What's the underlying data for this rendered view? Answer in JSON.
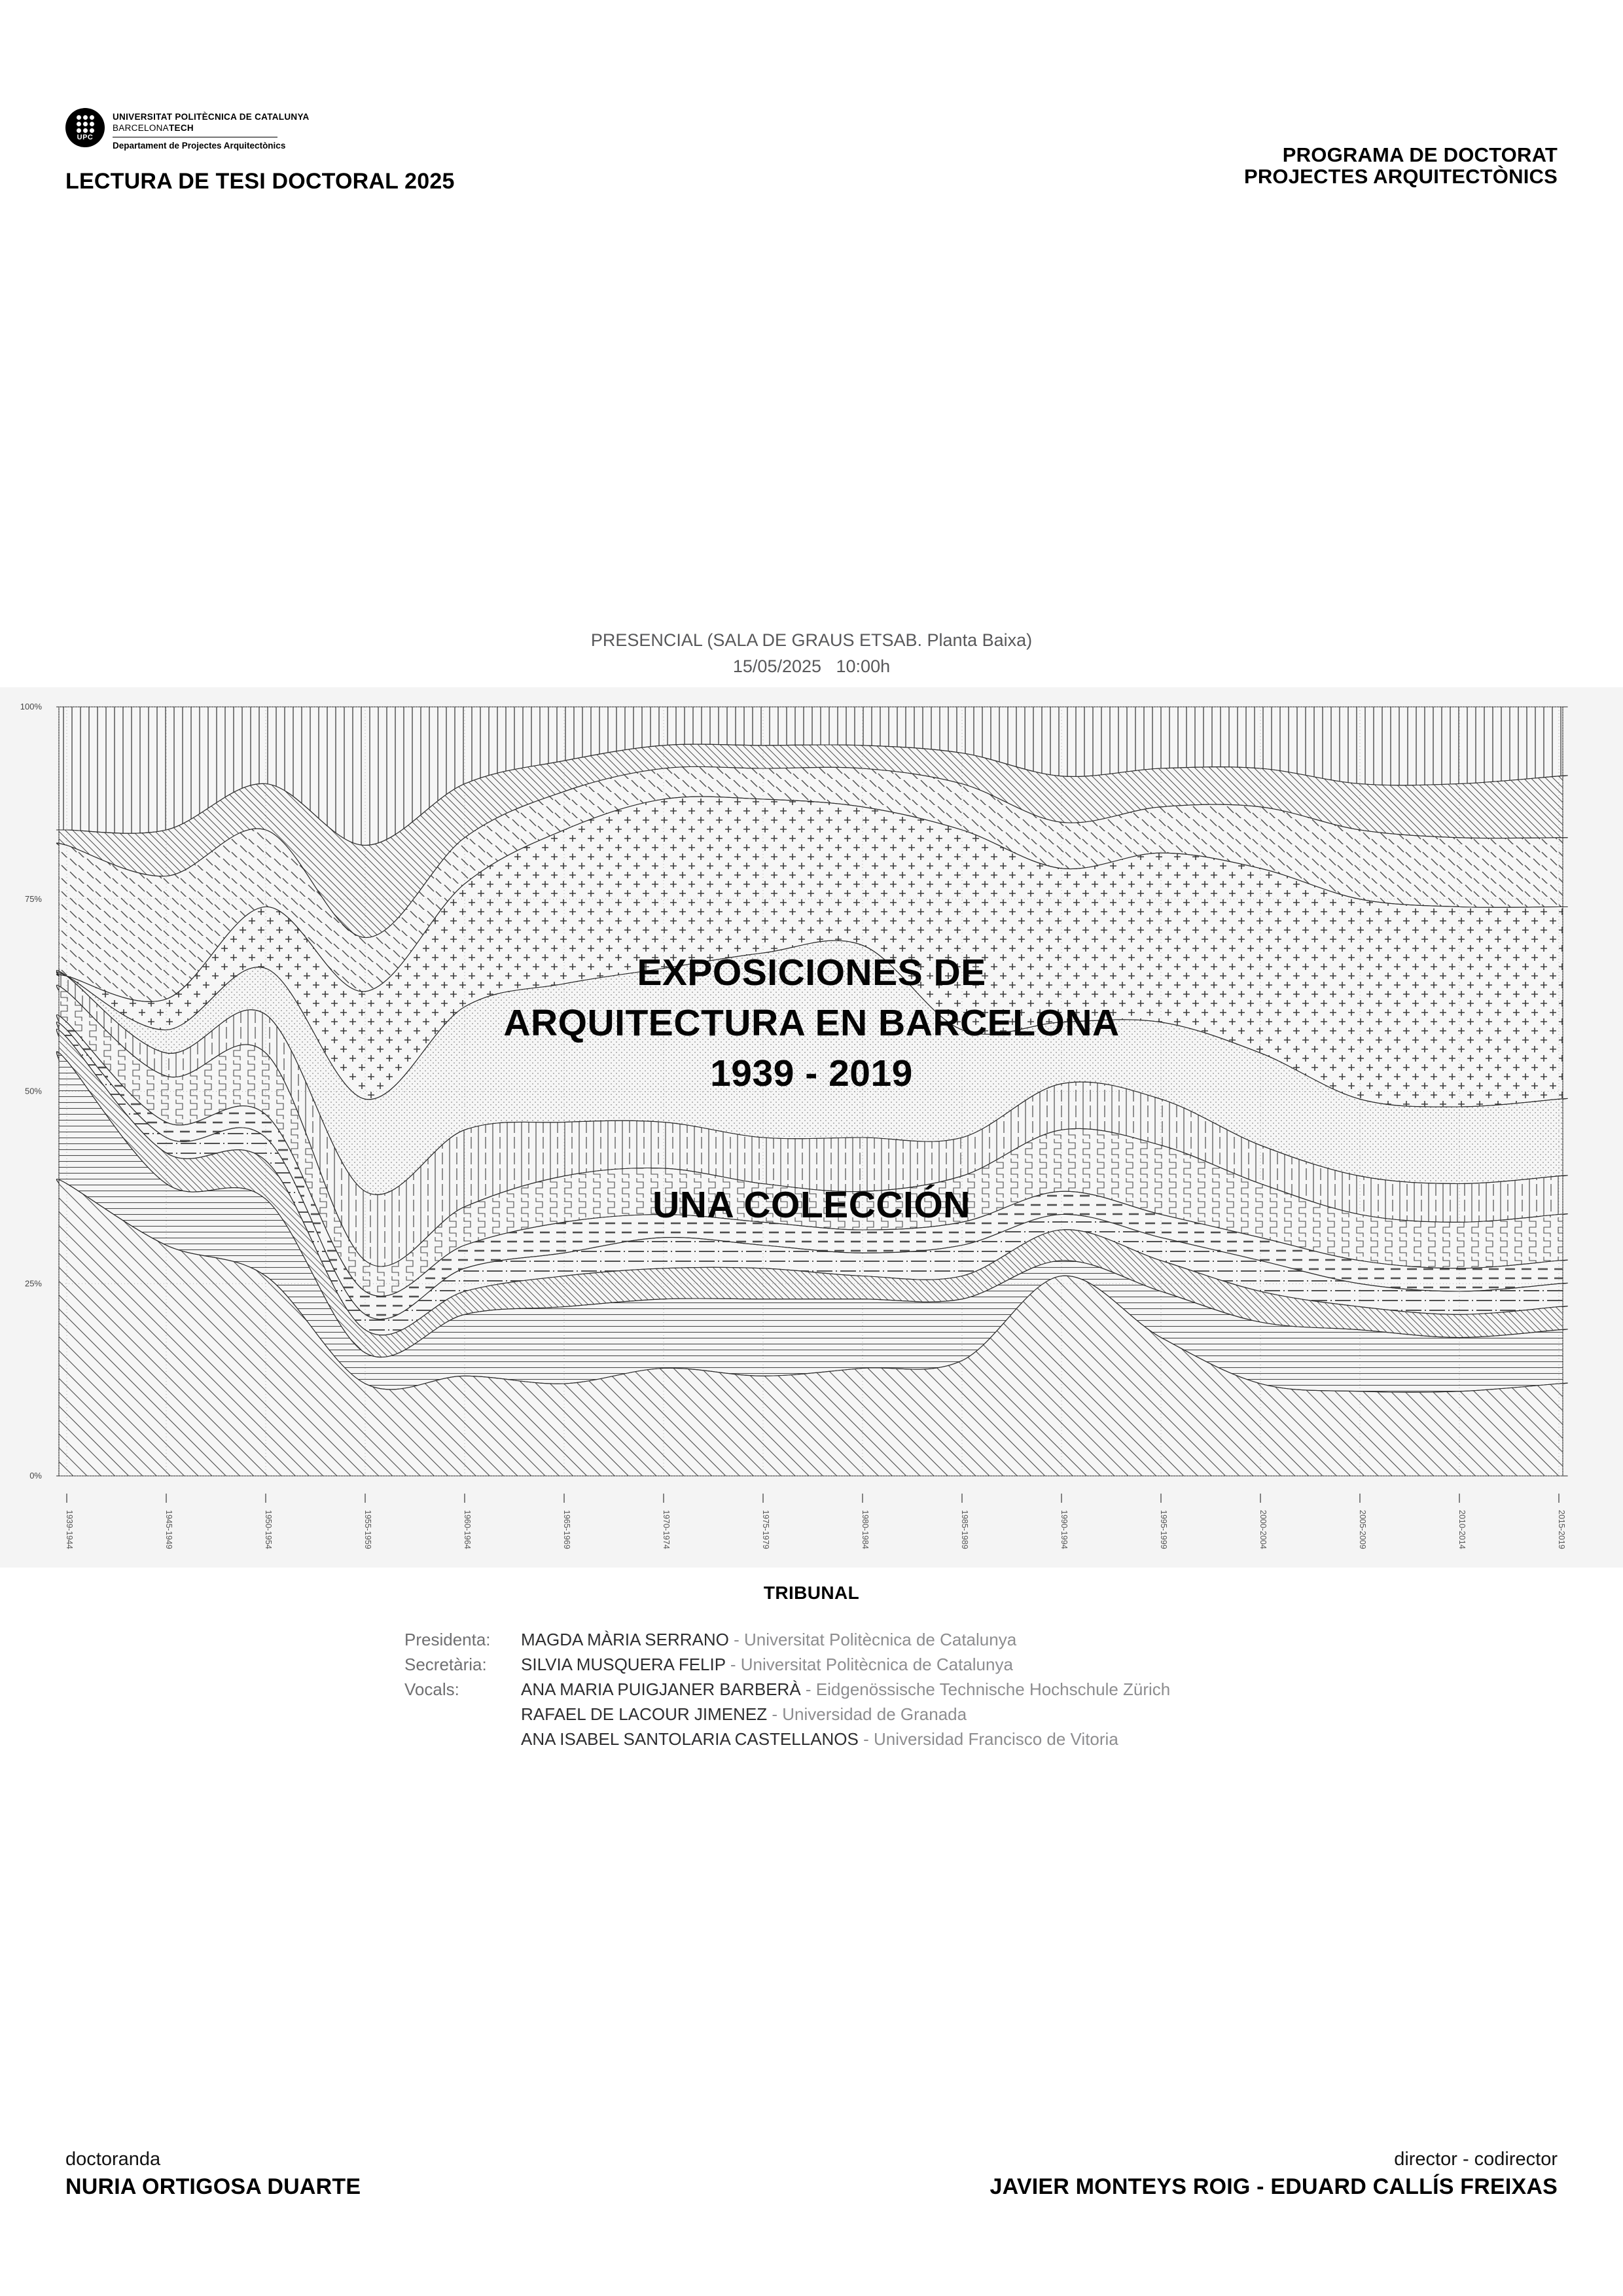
{
  "header": {
    "logo": {
      "acronym": "UPC",
      "line1": "UNIVERSITAT POLITÈCNICA DE CATALUNYA",
      "line2_regular": "BARCELONA",
      "line2_bold": "TECH",
      "department": "Departament de Projectes Arquitectònics"
    },
    "event_title": "LECTURA DE TESI DOCTORAL 2025",
    "program_line1": "PROGRAMA DE DOCTORAT",
    "program_line2": "PROJECTES ARQUITECTÒNICS"
  },
  "venue": {
    "location": "PRESENCIAL (SALA DE GRAUS ETSAB. Planta Baixa)",
    "datetime": "15/05/2025   10:00h"
  },
  "poster_title": {
    "line1": "EXPOSICIONES DE",
    "line2": "ARQUITECTURA EN BARCELONA",
    "line3": "1939 - 2019",
    "subtitle": "UNA COLECCIÓN"
  },
  "chart_data": {
    "type": "area",
    "variant": "normalized-stacked-streamgraph",
    "title": "EXPOSICIONES DE ARQUITECTURA EN BARCELONA 1939 - 2019 — UNA COLECCIÓN",
    "categories": [
      "1939-1944",
      "1945-1949",
      "1950-1954",
      "1955-1959",
      "1960-1964",
      "1965-1969",
      "1970-1974",
      "1975-1979",
      "1980-1984",
      "1985-1989",
      "1990-1994",
      "1995-1999",
      "2000-2004",
      "2005-2009",
      "2010-2014",
      "2015-2019"
    ],
    "y_ticks": [
      "0%",
      "25%",
      "50%",
      "75%",
      "100%"
    ],
    "ylim": [
      0,
      100
    ],
    "xlabel": "",
    "ylabel": "",
    "grid": "dotted",
    "legend": "none",
    "series_labels_visible": false,
    "series": [
      {
        "name": "band-01",
        "pattern": "diagonal-hatch-wide",
        "values": [
          38,
          30,
          26,
          12,
          13,
          12,
          14,
          13,
          14,
          15,
          26,
          18,
          12,
          11,
          11,
          12
        ]
      },
      {
        "name": "band-02",
        "pattern": "horizontal-lines",
        "values": [
          16,
          8,
          10,
          4,
          8,
          10,
          9,
          10,
          9,
          8,
          2,
          6,
          8,
          8,
          7,
          7
        ]
      },
      {
        "name": "band-03",
        "pattern": "diagonal-ribbon",
        "values": [
          3,
          4,
          5,
          3,
          3,
          4,
          4,
          4,
          3,
          3,
          4,
          4,
          4,
          3,
          3,
          3
        ]
      },
      {
        "name": "band-04",
        "pattern": "dash-dot-lines",
        "values": [
          1,
          2,
          3,
          2,
          3,
          3,
          4,
          3,
          3,
          4,
          2,
          3,
          4,
          3,
          3,
          3
        ]
      },
      {
        "name": "band-05",
        "pattern": "horizontal-dashes",
        "values": [
          1,
          2,
          3,
          3,
          3,
          4,
          3,
          3,
          3,
          3,
          3,
          3,
          3,
          3,
          3,
          3
        ]
      },
      {
        "name": "band-06",
        "pattern": "zigzag",
        "values": [
          4,
          6,
          8,
          4,
          5,
          6,
          6,
          5,
          5,
          6,
          8,
          9,
          7,
          6,
          6,
          6
        ]
      },
      {
        "name": "band-07",
        "pattern": "vertical-dashed",
        "values": [
          2,
          3,
          5,
          9,
          10,
          7,
          6,
          6,
          7,
          5,
          6,
          6,
          5,
          5,
          5,
          5
        ]
      },
      {
        "name": "band-08",
        "pattern": "fine-dots",
        "values": [
          0,
          3,
          6,
          12,
          16,
          18,
          20,
          24,
          25,
          14,
          8,
          10,
          12,
          10,
          10,
          10
        ]
      },
      {
        "name": "band-09",
        "pattern": "plus-crosses",
        "values": [
          0,
          4,
          8,
          14,
          16,
          20,
          22,
          20,
          18,
          26,
          20,
          22,
          24,
          26,
          26,
          25
        ]
      },
      {
        "name": "band-10",
        "pattern": "diagonal-dashes",
        "values": [
          17,
          16,
          10,
          7,
          6,
          5,
          4,
          4,
          5,
          6,
          6,
          6,
          8,
          9,
          9,
          9
        ]
      },
      {
        "name": "band-11",
        "pattern": "diagonal-hatch-narrow",
        "values": [
          2,
          6,
          6,
          12,
          7,
          4,
          3,
          3,
          3,
          4,
          6,
          5,
          5,
          6,
          7,
          8
        ]
      },
      {
        "name": "band-12",
        "pattern": "vertical-lines",
        "values": [
          16,
          16,
          10,
          18,
          10,
          7,
          5,
          5,
          5,
          6,
          9,
          8,
          8,
          10,
          10,
          9
        ]
      }
    ]
  },
  "tribunal": {
    "heading": "TRIBUNAL",
    "members": [
      {
        "role": "Presidenta:",
        "name": "MAGDA MÀRIA SERRANO",
        "sep": " - ",
        "affiliation": "Universitat Politècnica de Catalunya"
      },
      {
        "role": "Secretària:",
        "name": "SILVIA MUSQUERA FELIP",
        "sep": " - ",
        "affiliation": "Universitat Politècnica de Catalunya"
      },
      {
        "role": "Vocals:",
        "name": "ANA MARIA PUIGJANER BARBERÀ",
        "sep": " - ",
        "affiliation": "Eidgenössische Technische Hochschule Zürich"
      },
      {
        "role": "",
        "name": "RAFAEL DE LACOUR JIMENEZ",
        "sep": " - ",
        "affiliation": "Universidad de Granada"
      },
      {
        "role": "",
        "name": "ANA ISABEL SANTOLARIA CASTELLANOS",
        "sep": " - ",
        "affiliation": "Universidad Francisco de Vitoria"
      }
    ]
  },
  "footer": {
    "doctoranda_label": "doctoranda",
    "doctoranda_name": "NURIA ORTIGOSA DUARTE",
    "directors_label": "director - codirector",
    "directors_names": "JAVIER MONTEYS ROIG - EDUARD CALLÍS FREIXAS"
  },
  "colors": {
    "paper": "#ffffff",
    "chart_strip": "#f4f4f4",
    "ink": "#000000",
    "muted_text": "#58585a",
    "hatch": "#555555",
    "band_outline": "#2a2a2a"
  }
}
